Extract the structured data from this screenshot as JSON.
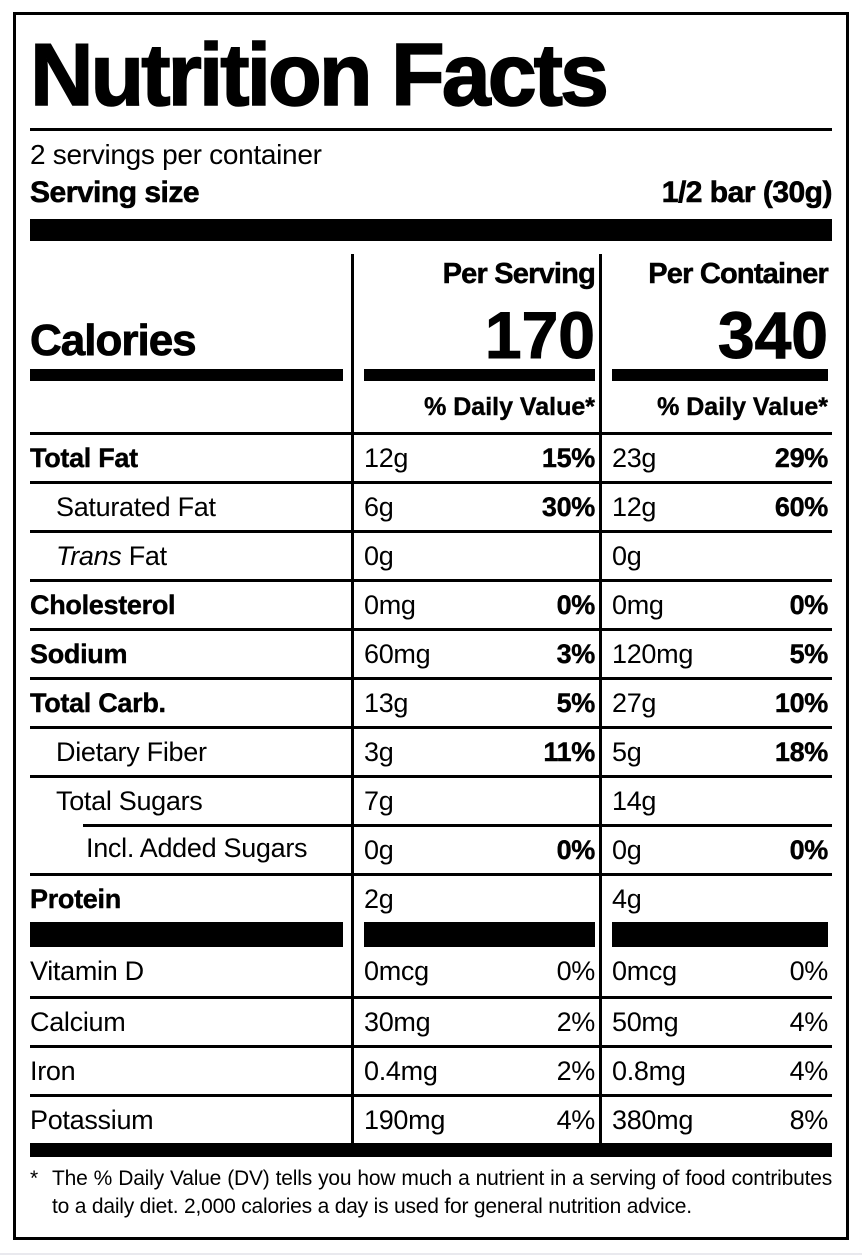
{
  "page": {
    "title": "Nutrition Facts",
    "servings_per_container": "2 servings per container",
    "serving_size_label": "Serving size",
    "serving_size_value": "1/2 bar (30g)",
    "col_serving": "Per Serving",
    "col_container": "Per Container",
    "calories_label": "Calories",
    "calories_per_serving": "170",
    "calories_per_container": "340",
    "daily_value_header_serving": "% Daily Value*",
    "daily_value_header_container": "% Daily Value*"
  },
  "rows": [
    {
      "label": "Total Fat",
      "amount_serving": "12g",
      "dv_serving": "15%",
      "amount_container": "23g",
      "dv_container": "29%"
    },
    {
      "label": "Saturated Fat",
      "amount_serving": "6g",
      "dv_serving": "30%",
      "amount_container": "12g",
      "dv_container": "60%"
    },
    {
      "label_italic": "Trans",
      "label": " Fat",
      "amount_serving": "0g",
      "dv_serving": "",
      "amount_container": "0g",
      "dv_container": ""
    },
    {
      "label": "Cholesterol",
      "amount_serving": "0mg",
      "dv_serving": "0%",
      "amount_container": "0mg",
      "dv_container": "0%"
    },
    {
      "label": "Sodium",
      "amount_serving": "60mg",
      "dv_serving": "3%",
      "amount_container": "120mg",
      "dv_container": "5%"
    },
    {
      "label": "Total Carb.",
      "amount_serving": "13g",
      "dv_serving": "5%",
      "amount_container": "27g",
      "dv_container": "10%"
    },
    {
      "label": "Dietary Fiber",
      "amount_serving": "3g",
      "dv_serving": "11%",
      "amount_container": "5g",
      "dv_container": "18%"
    },
    {
      "label": "Total Sugars",
      "amount_serving": "7g",
      "dv_serving": "",
      "amount_container": "14g",
      "dv_container": ""
    },
    {
      "label": "Incl. Added Sugars",
      "amount_serving": "0g",
      "dv_serving": "0%",
      "amount_container": "0g",
      "dv_container": "0%"
    },
    {
      "label": "Protein",
      "amount_serving": "2g",
      "dv_serving": "",
      "amount_container": "4g",
      "dv_container": ""
    }
  ],
  "micronutrients": [
    {
      "label": "Vitamin D",
      "amount_serving": "0mcg",
      "dv_serving": "0%",
      "amount_container": "0mcg",
      "dv_container": "0%"
    },
    {
      "label": "Calcium",
      "amount_serving": "30mg",
      "dv_serving": "2%",
      "amount_container": "50mg",
      "dv_container": "4%"
    },
    {
      "label": "Iron",
      "amount_serving": "0.4mg",
      "dv_serving": "2%",
      "amount_container": "0.8mg",
      "dv_container": "4%"
    },
    {
      "label": "Potassium",
      "amount_serving": "190mg",
      "dv_serving": "4%",
      "amount_container": "380mg",
      "dv_container": "8%"
    }
  ],
  "footnote": {
    "marker": "*",
    "text": "The % Daily Value (DV) tells you how much a nutrient in a serving of food contributes to a daily diet. 2,000 calories a day is used for general nutrition advice."
  },
  "colors": {
    "ink": "#000000",
    "paper": "#ffffff"
  }
}
